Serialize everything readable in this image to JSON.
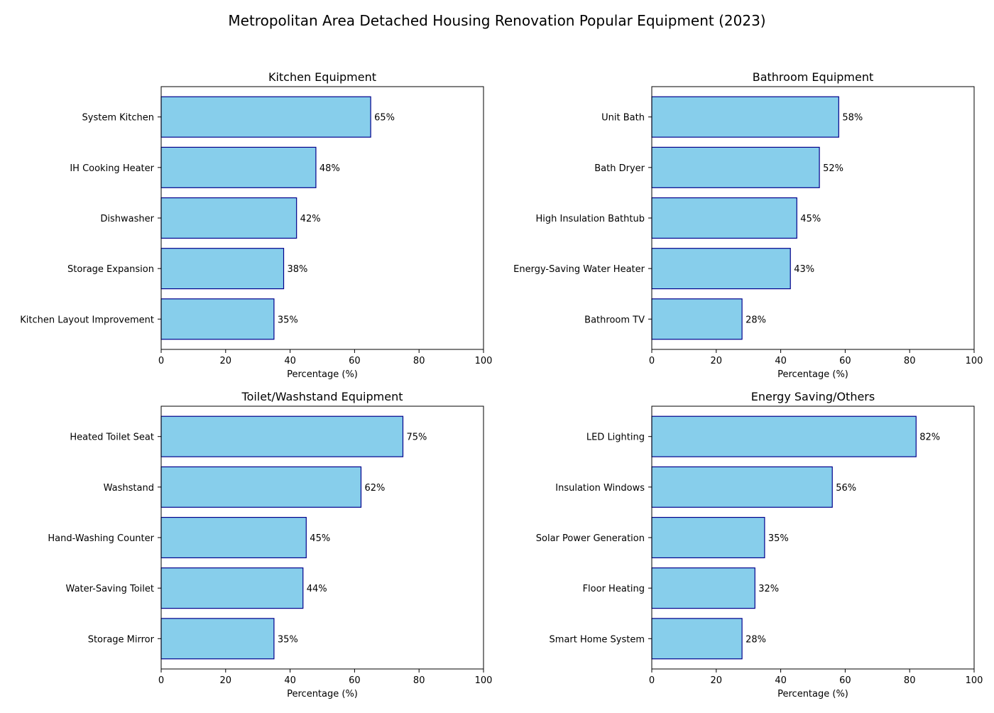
{
  "figure": {
    "suptitle": "Metropolitan Area Detached Housing Renovation Popular Equipment (2023)"
  },
  "style": {
    "bar_fill": "#87CEEB",
    "bar_edge": "#00008B",
    "axis_color": "#000000"
  },
  "chart_data": [
    {
      "type": "bar",
      "orientation": "horizontal",
      "title": "Kitchen Equipment",
      "xlabel": "Percentage (%)",
      "ylabel": "",
      "xlim": [
        0,
        100
      ],
      "xticks": [
        0,
        20,
        40,
        60,
        80,
        100
      ],
      "grid": false,
      "categories": [
        "System Kitchen",
        "IH Cooking Heater",
        "Dishwasher",
        "Storage Expansion",
        "Kitchen Layout Improvement"
      ],
      "values": [
        65,
        48,
        42,
        38,
        35
      ],
      "value_labels": [
        "65%",
        "48%",
        "42%",
        "38%",
        "35%"
      ]
    },
    {
      "type": "bar",
      "orientation": "horizontal",
      "title": "Bathroom Equipment",
      "xlabel": "Percentage (%)",
      "ylabel": "",
      "xlim": [
        0,
        100
      ],
      "xticks": [
        0,
        20,
        40,
        60,
        80,
        100
      ],
      "grid": false,
      "categories": [
        "Unit Bath",
        "Bath Dryer",
        "High Insulation Bathtub",
        "Energy-Saving Water Heater",
        "Bathroom TV"
      ],
      "values": [
        58,
        52,
        45,
        43,
        28
      ],
      "value_labels": [
        "58%",
        "52%",
        "45%",
        "43%",
        "28%"
      ]
    },
    {
      "type": "bar",
      "orientation": "horizontal",
      "title": "Toilet/Washstand Equipment",
      "xlabel": "Percentage (%)",
      "ylabel": "",
      "xlim": [
        0,
        100
      ],
      "xticks": [
        0,
        20,
        40,
        60,
        80,
        100
      ],
      "grid": false,
      "categories": [
        "Heated Toilet Seat",
        "Washstand",
        "Hand-Washing Counter",
        "Water-Saving Toilet",
        "Storage Mirror"
      ],
      "values": [
        75,
        62,
        45,
        44,
        35
      ],
      "value_labels": [
        "75%",
        "62%",
        "45%",
        "44%",
        "35%"
      ]
    },
    {
      "type": "bar",
      "orientation": "horizontal",
      "title": "Energy Saving/Others",
      "xlabel": "Percentage (%)",
      "ylabel": "",
      "xlim": [
        0,
        100
      ],
      "xticks": [
        0,
        20,
        40,
        60,
        80,
        100
      ],
      "grid": false,
      "categories": [
        "LED Lighting",
        "Insulation Windows",
        "Solar Power Generation",
        "Floor Heating",
        "Smart Home System"
      ],
      "values": [
        82,
        56,
        35,
        32,
        28
      ],
      "value_labels": [
        "82%",
        "56%",
        "35%",
        "32%",
        "28%"
      ]
    }
  ]
}
